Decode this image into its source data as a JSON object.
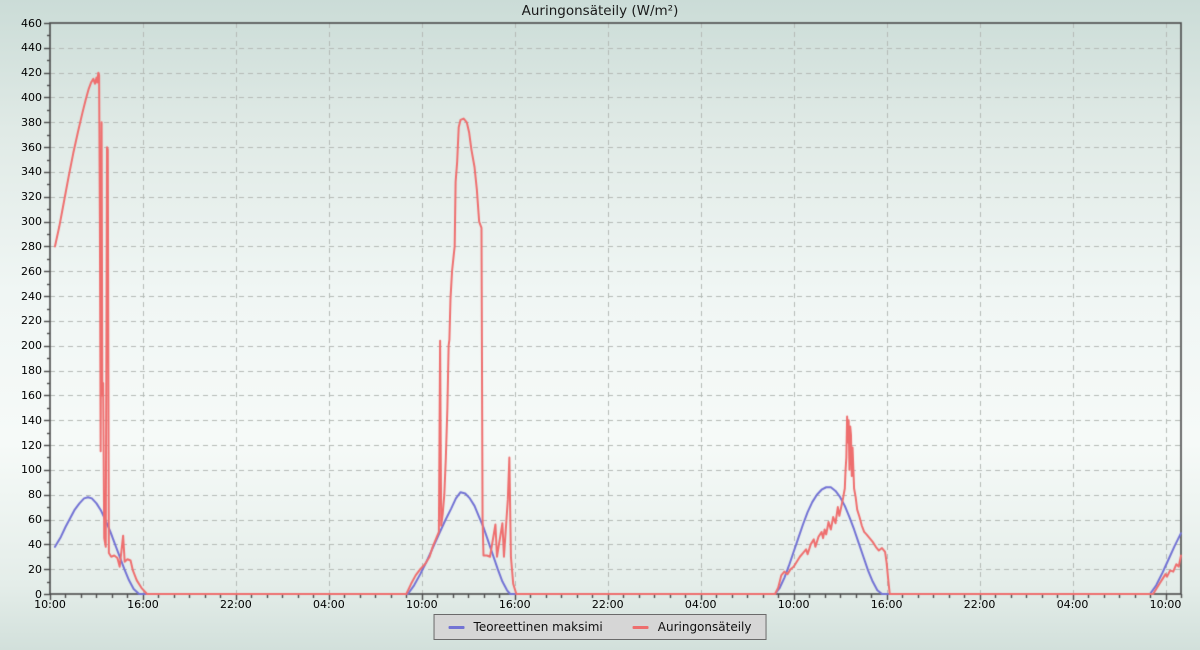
{
  "chart_data": {
    "type": "line",
    "title": "Auringonsäteily (W/m²)",
    "xlabel": "",
    "ylabel": "",
    "xlim": [
      0,
      73
    ],
    "ylim": [
      0,
      460
    ],
    "x_unit": "hours after first 10:00 tick (3-day span)",
    "grid": "dashed",
    "legend_position": "bottom-center",
    "y_tick_step": 20,
    "y_minor_tick_step": 10,
    "x_major_tick_step_hours": 6,
    "x_minor_tick_step_hours": 1,
    "y_tick_labels": [
      "0",
      "20",
      "40",
      "60",
      "80",
      "100",
      "120",
      "140",
      "160",
      "180",
      "200",
      "220",
      "240",
      "260",
      "280",
      "300",
      "320",
      "340",
      "360",
      "380",
      "400",
      "420",
      "440",
      "460"
    ],
    "x_major_ticks_hours": [
      0,
      6,
      12,
      18,
      24,
      30,
      36,
      42,
      48,
      54,
      60,
      66,
      72
    ],
    "x_tick_labels": [
      "10:00",
      "16:00",
      "22:00",
      "04:00",
      "10:00",
      "16:00",
      "22:00",
      "04:00",
      "10:00",
      "16:00",
      "22:00",
      "04:00",
      "10:00"
    ],
    "colors": {
      "grid": "#b4bab6",
      "axis": "#4a4a4a",
      "background_top": "#cbdcd7",
      "background_mid": "#f6faf8",
      "background_bottom": "#d2e0db",
      "legend_bg": "#d6d6d6",
      "legend_border": "#6a6a6a"
    },
    "series": [
      {
        "name": "Teoreettinen maksimi",
        "color": "#7272d4",
        "points": [
          [
            0.32,
            38
          ],
          [
            0.7,
            46
          ],
          [
            1.0,
            54
          ],
          [
            1.3,
            61
          ],
          [
            1.6,
            68
          ],
          [
            1.9,
            73
          ],
          [
            2.2,
            77
          ],
          [
            2.45,
            78
          ],
          [
            2.7,
            77
          ],
          [
            3.0,
            73
          ],
          [
            3.3,
            67
          ],
          [
            3.6,
            59
          ],
          [
            3.9,
            50
          ],
          [
            4.2,
            40
          ],
          [
            4.5,
            30
          ],
          [
            4.8,
            20
          ],
          [
            5.1,
            11
          ],
          [
            5.4,
            4
          ],
          [
            5.75,
            0
          ],
          [
            23.1,
            0
          ],
          [
            23.5,
            7
          ],
          [
            23.9,
            16
          ],
          [
            24.3,
            26
          ],
          [
            24.7,
            37
          ],
          [
            25.1,
            48
          ],
          [
            25.5,
            59
          ],
          [
            25.9,
            69
          ],
          [
            26.2,
            77
          ],
          [
            26.5,
            82
          ],
          [
            26.8,
            81
          ],
          [
            27.1,
            77
          ],
          [
            27.4,
            71
          ],
          [
            27.7,
            62
          ],
          [
            28.0,
            53
          ],
          [
            28.3,
            42
          ],
          [
            28.6,
            31
          ],
          [
            28.9,
            20
          ],
          [
            29.2,
            10
          ],
          [
            29.5,
            3
          ],
          [
            29.7,
            0
          ],
          [
            46.8,
            0
          ],
          [
            47.1,
            5
          ],
          [
            47.4,
            13
          ],
          [
            47.7,
            23
          ],
          [
            48.0,
            34
          ],
          [
            48.3,
            45
          ],
          [
            48.6,
            56
          ],
          [
            48.9,
            66
          ],
          [
            49.2,
            74
          ],
          [
            49.5,
            80
          ],
          [
            49.8,
            84
          ],
          [
            50.1,
            86
          ],
          [
            50.4,
            86
          ],
          [
            50.7,
            83
          ],
          [
            51.0,
            78
          ],
          [
            51.3,
            71
          ],
          [
            51.6,
            62
          ],
          [
            51.9,
            52
          ],
          [
            52.2,
            41
          ],
          [
            52.5,
            30
          ],
          [
            52.8,
            19
          ],
          [
            53.1,
            10
          ],
          [
            53.4,
            3
          ],
          [
            53.7,
            0
          ],
          [
            71.0,
            0
          ],
          [
            71.4,
            7
          ],
          [
            71.8,
            17
          ],
          [
            72.2,
            28
          ],
          [
            72.6,
            39
          ],
          [
            73.0,
            49
          ]
        ]
      },
      {
        "name": "Auringonsäteily",
        "color": "#ee6e6e",
        "points": [
          [
            0.32,
            280
          ],
          [
            0.6,
            296
          ],
          [
            0.9,
            316
          ],
          [
            1.2,
            336
          ],
          [
            1.5,
            355
          ],
          [
            1.8,
            372
          ],
          [
            2.1,
            388
          ],
          [
            2.3,
            398
          ],
          [
            2.5,
            407
          ],
          [
            2.65,
            412
          ],
          [
            2.8,
            415
          ],
          [
            2.9,
            411
          ],
          [
            3.0,
            416
          ],
          [
            3.05,
            412
          ],
          [
            3.12,
            420
          ],
          [
            3.17,
            418
          ],
          [
            3.22,
            300
          ],
          [
            3.27,
            115
          ],
          [
            3.33,
            380
          ],
          [
            3.38,
            160
          ],
          [
            3.43,
            170
          ],
          [
            3.5,
            45
          ],
          [
            3.6,
            38
          ],
          [
            3.68,
            360
          ],
          [
            3.73,
            358
          ],
          [
            3.8,
            33
          ],
          [
            3.95,
            30
          ],
          [
            4.15,
            31
          ],
          [
            4.35,
            29
          ],
          [
            4.5,
            22
          ],
          [
            4.72,
            47
          ],
          [
            4.82,
            26
          ],
          [
            5.0,
            28
          ],
          [
            5.2,
            27
          ],
          [
            5.35,
            19
          ],
          [
            5.6,
            11
          ],
          [
            5.9,
            5
          ],
          [
            6.26,
            0
          ],
          [
            23.0,
            0
          ],
          [
            23.3,
            8
          ],
          [
            23.6,
            15
          ],
          [
            23.9,
            20
          ],
          [
            24.2,
            24
          ],
          [
            24.5,
            30
          ],
          [
            24.7,
            38
          ],
          [
            24.9,
            44
          ],
          [
            25.1,
            50
          ],
          [
            25.18,
            204
          ],
          [
            25.25,
            55
          ],
          [
            25.35,
            65
          ],
          [
            25.45,
            80
          ],
          [
            25.55,
            110
          ],
          [
            25.65,
            150
          ],
          [
            25.73,
            200
          ],
          [
            25.78,
            205
          ],
          [
            25.85,
            238
          ],
          [
            25.95,
            260
          ],
          [
            26.05,
            272
          ],
          [
            26.12,
            280
          ],
          [
            26.18,
            332
          ],
          [
            26.28,
            348
          ],
          [
            26.38,
            376
          ],
          [
            26.5,
            382
          ],
          [
            26.7,
            383
          ],
          [
            26.9,
            380
          ],
          [
            27.05,
            372
          ],
          [
            27.2,
            358
          ],
          [
            27.4,
            344
          ],
          [
            27.55,
            326
          ],
          [
            27.7,
            300
          ],
          [
            27.85,
            295
          ],
          [
            27.92,
            60
          ],
          [
            27.98,
            31
          ],
          [
            28.2,
            31
          ],
          [
            28.4,
            30
          ],
          [
            28.75,
            56
          ],
          [
            28.85,
            30
          ],
          [
            29.2,
            57
          ],
          [
            29.3,
            30
          ],
          [
            29.55,
            76
          ],
          [
            29.65,
            110
          ],
          [
            29.75,
            30
          ],
          [
            29.9,
            8
          ],
          [
            30.1,
            0
          ],
          [
            46.8,
            0
          ],
          [
            47.0,
            5
          ],
          [
            47.2,
            15
          ],
          [
            47.4,
            18
          ],
          [
            47.6,
            16
          ],
          [
            47.8,
            20
          ],
          [
            48.0,
            22
          ],
          [
            48.2,
            26
          ],
          [
            48.4,
            30
          ],
          [
            48.6,
            33
          ],
          [
            48.8,
            36
          ],
          [
            48.9,
            32
          ],
          [
            49.1,
            40
          ],
          [
            49.3,
            44
          ],
          [
            49.4,
            38
          ],
          [
            49.6,
            46
          ],
          [
            49.8,
            50
          ],
          [
            49.9,
            45
          ],
          [
            50.0,
            52
          ],
          [
            50.1,
            48
          ],
          [
            50.25,
            58
          ],
          [
            50.4,
            52
          ],
          [
            50.55,
            62
          ],
          [
            50.7,
            57
          ],
          [
            50.85,
            70
          ],
          [
            50.95,
            63
          ],
          [
            51.1,
            72
          ],
          [
            51.2,
            78
          ],
          [
            51.3,
            85
          ],
          [
            51.35,
            100
          ],
          [
            51.4,
            110
          ],
          [
            51.45,
            143
          ],
          [
            51.5,
            122
          ],
          [
            51.55,
            140
          ],
          [
            51.6,
            100
          ],
          [
            51.65,
            135
          ],
          [
            51.7,
            128
          ],
          [
            51.75,
            95
          ],
          [
            51.8,
            118
          ],
          [
            51.9,
            85
          ],
          [
            52.0,
            78
          ],
          [
            52.1,
            68
          ],
          [
            52.25,
            62
          ],
          [
            52.4,
            55
          ],
          [
            52.55,
            50
          ],
          [
            52.7,
            48
          ],
          [
            52.9,
            45
          ],
          [
            53.1,
            42
          ],
          [
            53.3,
            38
          ],
          [
            53.5,
            35
          ],
          [
            53.7,
            37
          ],
          [
            53.9,
            34
          ],
          [
            54.0,
            25
          ],
          [
            54.1,
            12
          ],
          [
            54.2,
            0
          ],
          [
            71.2,
            0
          ],
          [
            71.4,
            4
          ],
          [
            71.6,
            8
          ],
          [
            71.8,
            12
          ],
          [
            72.0,
            16
          ],
          [
            72.1,
            14
          ],
          [
            72.3,
            19
          ],
          [
            72.5,
            18
          ],
          [
            72.7,
            24
          ],
          [
            72.85,
            22
          ],
          [
            73.0,
            31
          ]
        ]
      }
    ]
  }
}
